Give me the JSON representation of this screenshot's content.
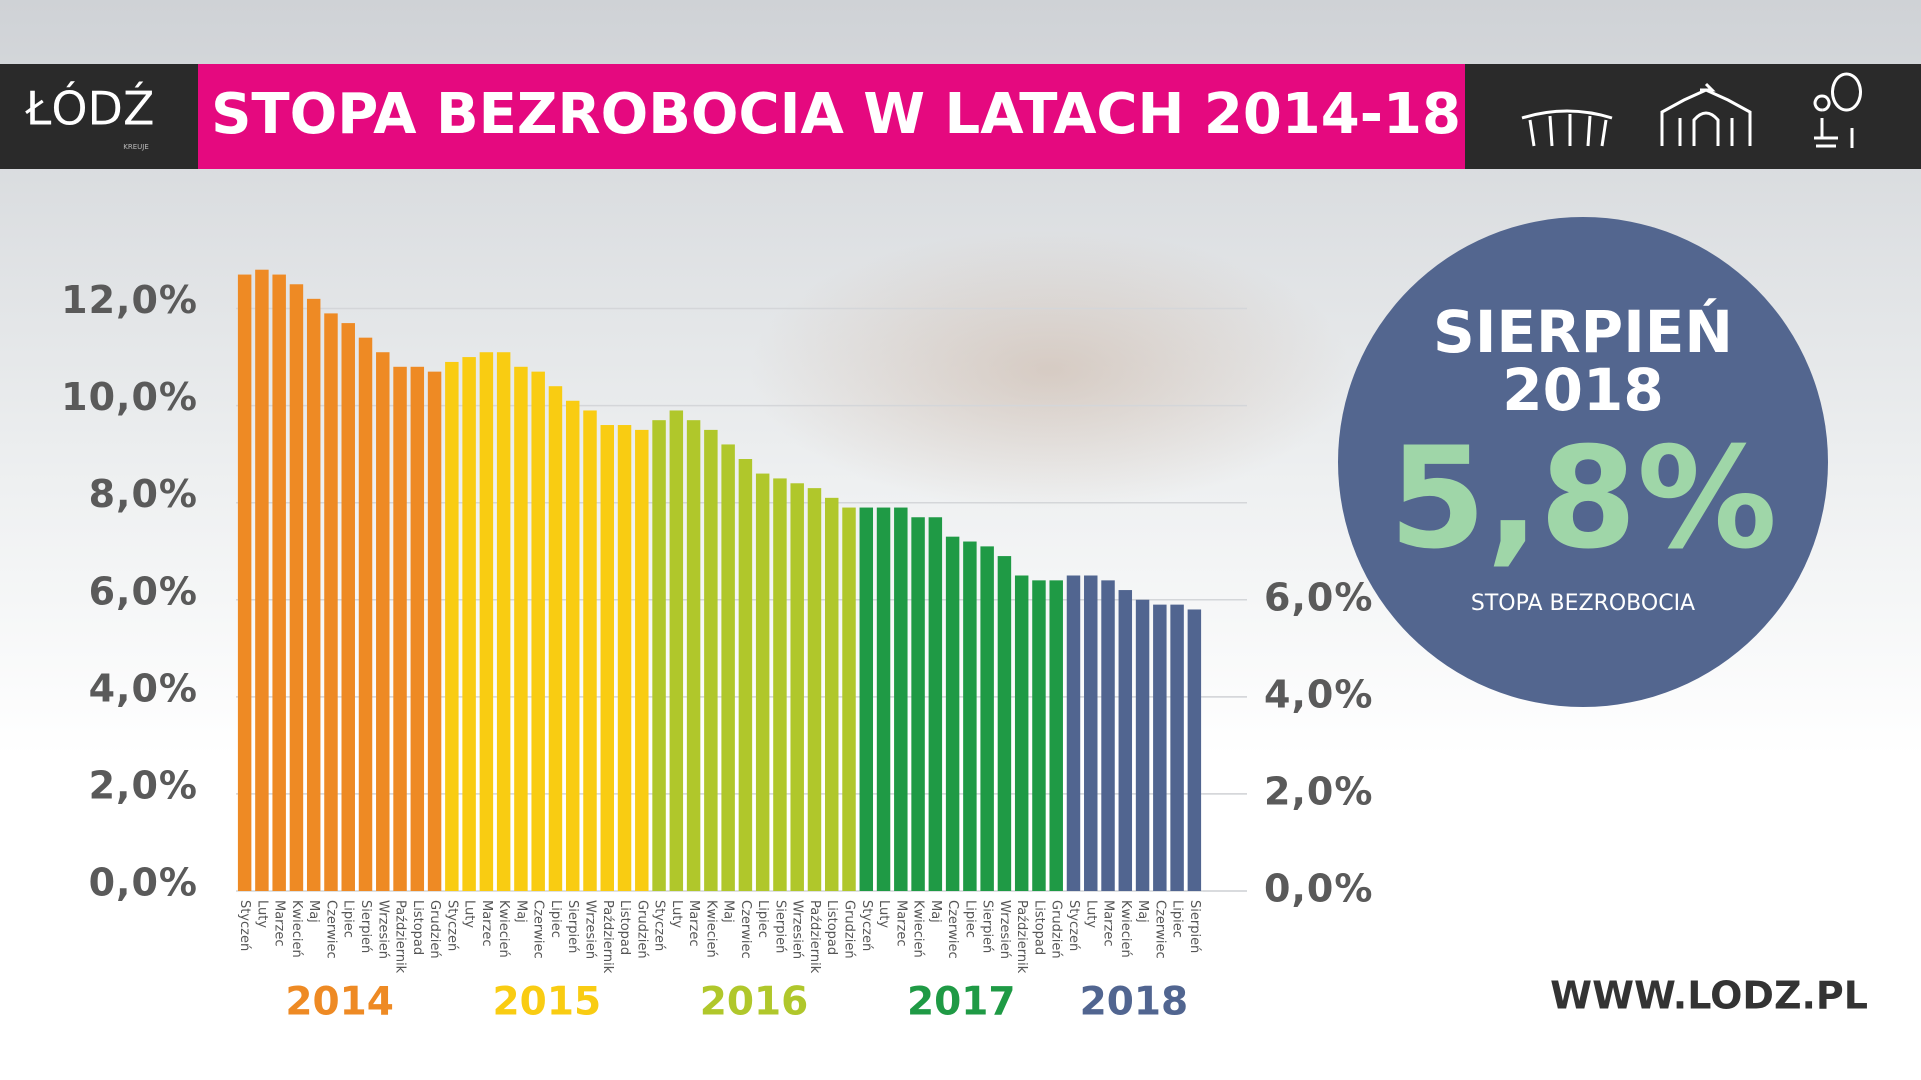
{
  "chart_data": {
    "type": "bar",
    "title": "STOPA BEZROBOCIA W LATACH 2014-18",
    "logo": {
      "text": "ŁÓDŹ",
      "tagline": "KREUJE"
    },
    "website": "WWW.LODZ.PL",
    "callout": {
      "month": "SIERPIEŃ",
      "year": "2018",
      "value": "5,8%",
      "label": "STOPA BEZROBOCIA"
    },
    "categories": [
      "Styczeń",
      "Luty",
      "Marzec",
      "Kwiecień",
      "Maj",
      "Czerwiec",
      "Lipiec",
      "Sierpień",
      "Wrzesień",
      "Październik",
      "Listopad",
      "Grudzień",
      "Styczeń",
      "Luty",
      "Marzec",
      "Kwiecień",
      "Maj",
      "Czerwiec",
      "Lipiec",
      "Sierpień",
      "Wrzesień",
      "Październik",
      "Listopad",
      "Grudzień",
      "Styczeń",
      "Luty",
      "Marzec",
      "Kwiecień",
      "Maj",
      "Czerwiec",
      "Lipiec",
      "Sierpień",
      "Wrzesień",
      "Październik",
      "Listopad",
      "Grudzień",
      "Styczeń",
      "Luty",
      "Marzec",
      "Kwiecień",
      "Maj",
      "Czerwiec",
      "Lipiec",
      "Sierpień",
      "Wrzesień",
      "Październik",
      "Listopad",
      "Grudzień",
      "Styczeń",
      "Luty",
      "Marzec",
      "Kwiecień",
      "Maj",
      "Czerwiec",
      "Lipiec",
      "Sierpień"
    ],
    "series": [
      {
        "name": "2014",
        "color": "#ee8a24",
        "values": [
          12.7,
          12.8,
          12.7,
          12.5,
          12.2,
          11.9,
          11.7,
          11.4,
          11.1,
          10.8,
          10.8,
          10.7,
          null,
          null,
          null,
          null,
          null,
          null,
          null,
          null,
          null,
          null,
          null,
          null,
          null,
          null,
          null,
          null,
          null,
          null,
          null,
          null,
          null,
          null,
          null,
          null,
          null,
          null,
          null,
          null,
          null,
          null,
          null,
          null,
          null,
          null,
          null,
          null,
          null,
          null,
          null,
          null,
          null,
          null,
          null,
          null
        ]
      },
      {
        "name": "2015",
        "color": "#f9cc12",
        "values": [
          null,
          null,
          null,
          null,
          null,
          null,
          null,
          null,
          null,
          null,
          null,
          null,
          10.9,
          11.0,
          11.1,
          11.1,
          10.8,
          10.7,
          10.4,
          10.1,
          9.9,
          9.6,
          9.6,
          9.5,
          null,
          null,
          null,
          null,
          null,
          null,
          null,
          null,
          null,
          null,
          null,
          null,
          null,
          null,
          null,
          null,
          null,
          null,
          null,
          null,
          null,
          null,
          null,
          null,
          null,
          null,
          null,
          null,
          null,
          null,
          null,
          null
        ]
      },
      {
        "name": "2016",
        "color": "#b0c72b",
        "values": [
          null,
          null,
          null,
          null,
          null,
          null,
          null,
          null,
          null,
          null,
          null,
          null,
          null,
          null,
          null,
          null,
          null,
          null,
          null,
          null,
          null,
          null,
          null,
          null,
          9.7,
          9.9,
          9.7,
          9.5,
          9.2,
          8.9,
          8.6,
          8.5,
          8.4,
          8.3,
          8.1,
          7.9,
          null,
          null,
          null,
          null,
          null,
          null,
          null,
          null,
          null,
          null,
          null,
          null,
          null,
          null,
          null,
          null,
          null,
          null,
          null,
          null
        ]
      },
      {
        "name": "2017",
        "color": "#1f9a45",
        "values": [
          null,
          null,
          null,
          null,
          null,
          null,
          null,
          null,
          null,
          null,
          null,
          null,
          null,
          null,
          null,
          null,
          null,
          null,
          null,
          null,
          null,
          null,
          null,
          null,
          null,
          null,
          null,
          null,
          null,
          null,
          null,
          null,
          null,
          null,
          null,
          null,
          7.9,
          7.9,
          7.9,
          7.7,
          7.7,
          7.3,
          7.2,
          7.1,
          6.9,
          6.5,
          6.4,
          6.4,
          null,
          null,
          null,
          null,
          null,
          null,
          null,
          null
        ]
      },
      {
        "name": "2018",
        "color": "#516590",
        "values": [
          null,
          null,
          null,
          null,
          null,
          null,
          null,
          null,
          null,
          null,
          null,
          null,
          null,
          null,
          null,
          null,
          null,
          null,
          null,
          null,
          null,
          null,
          null,
          null,
          null,
          null,
          null,
          null,
          null,
          null,
          null,
          null,
          null,
          null,
          null,
          null,
          null,
          null,
          null,
          null,
          null,
          null,
          null,
          null,
          null,
          null,
          null,
          null,
          6.5,
          6.5,
          6.4,
          6.2,
          6.0,
          5.9,
          5.9,
          5.8
        ]
      }
    ],
    "ylim": [
      0,
      13
    ],
    "yticks": [
      {
        "value": 0,
        "label": "0,0%"
      },
      {
        "value": 2,
        "label": "2,0%"
      },
      {
        "value": 4,
        "label": "4,0%"
      },
      {
        "value": 6,
        "label": "6,0%"
      },
      {
        "value": 8,
        "label": "8,0%"
      },
      {
        "value": 10,
        "label": "10,0%"
      },
      {
        "value": 12,
        "label": "12,0%"
      }
    ],
    "y2lim": [
      0,
      13
    ],
    "y2ticks": [
      {
        "value": 0,
        "label": "0,0%"
      },
      {
        "value": 2,
        "label": "2,0%"
      },
      {
        "value": 4,
        "label": "4,0%"
      },
      {
        "value": 6,
        "label": "6,0%"
      }
    ],
    "grid": true
  }
}
